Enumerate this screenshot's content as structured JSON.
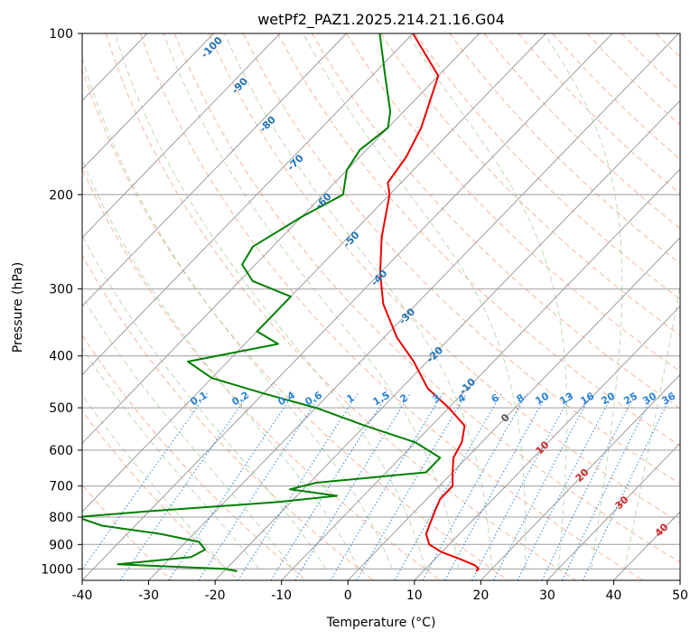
{
  "chart_data": {
    "type": "line",
    "subtype": "skew-t log-p diagram",
    "title": "wetPf2_PAZ1.2025.214.21.16.G04",
    "xlabel": "Temperature (°C)",
    "ylabel": "Pressure (hPa)",
    "xlim": [
      -40,
      50
    ],
    "ylim": [
      1050,
      100
    ],
    "y_scale": "log",
    "grid": true,
    "x_ticks": [
      "-40",
      "-30",
      "-20",
      "-10",
      "0",
      "10",
      "20",
      "30",
      "40",
      "50"
    ],
    "y_ticks": [
      "100",
      "200",
      "300",
      "400",
      "500",
      "600",
      "700",
      "800",
      "900",
      "1000"
    ],
    "series": [
      {
        "name": "",
        "color": "#ee0000",
        "points": [
          [
            -70,
            100
          ],
          [
            -60,
            120
          ],
          [
            -55,
            150
          ],
          [
            -53,
            170
          ],
          [
            -52,
            190
          ],
          [
            -50,
            200
          ],
          [
            -45,
            240
          ],
          [
            -40,
            280
          ],
          [
            -35,
            320
          ],
          [
            -28,
            370
          ],
          [
            -22,
            410
          ],
          [
            -16,
            460
          ],
          [
            -10,
            500
          ],
          [
            -5,
            540
          ],
          [
            -3,
            580
          ],
          [
            -2,
            620
          ],
          [
            0,
            660
          ],
          [
            2,
            700
          ],
          [
            2,
            740
          ],
          [
            3,
            780
          ],
          [
            4,
            820
          ],
          [
            5,
            860
          ],
          [
            7,
            900
          ],
          [
            10,
            930
          ],
          [
            14,
            960
          ],
          [
            17,
            985
          ],
          [
            18,
            1000
          ],
          [
            18,
            1010
          ]
        ]
      },
      {
        "name": "",
        "color": "#008000",
        "points": [
          [
            -75,
            100
          ],
          [
            -68,
            120
          ],
          [
            -62,
            140
          ],
          [
            -60,
            150
          ],
          [
            -61,
            165
          ],
          [
            -60,
            180
          ],
          [
            -57,
            200
          ],
          [
            -60,
            220
          ],
          [
            -63,
            250
          ],
          [
            -62,
            270
          ],
          [
            -58,
            290
          ],
          [
            -50,
            310
          ],
          [
            -50,
            340
          ],
          [
            -50,
            360
          ],
          [
            -45,
            380
          ],
          [
            -56,
            410
          ],
          [
            -50,
            440
          ],
          [
            -40,
            470
          ],
          [
            -30,
            500
          ],
          [
            -20,
            540
          ],
          [
            -10,
            580
          ],
          [
            -4,
            620
          ],
          [
            -4,
            660
          ],
          [
            -19,
            690
          ],
          [
            -22,
            710
          ],
          [
            -14,
            730
          ],
          [
            -22,
            750
          ],
          [
            -40,
            780
          ],
          [
            -50,
            800
          ],
          [
            -45,
            830
          ],
          [
            -35,
            860
          ],
          [
            -28,
            890
          ],
          [
            -26,
            920
          ],
          [
            -27,
            950
          ],
          [
            -37,
            980
          ],
          [
            -20,
            1000
          ],
          [
            -18,
            1010
          ]
        ]
      }
    ],
    "dry_adiabat_labels": [],
    "moist_adiabat_labels": [
      "-100",
      "-90",
      "-80",
      "-70",
      "-60",
      "-50",
      "-40",
      "-30",
      "-20",
      "-10",
      "0",
      "10",
      "20",
      "30",
      "40"
    ],
    "mixing_ratio_labels": [
      "0.1",
      "0.2",
      "0.4",
      "0.6",
      "1",
      "1.5",
      "2",
      "3",
      "4",
      "6",
      "8",
      "10",
      "13",
      "16",
      "20",
      "25",
      "30",
      "36"
    ],
    "colors": {
      "isotherm": "#9e9e9e",
      "isobar": "#9e9e9e",
      "dry_adiabat": "#f4a582",
      "moist_adiabat": "#a6d69e",
      "mixing_ratio": "#2b83d9",
      "label_blue": "#2171b5",
      "label_red": "#d62728",
      "label_gray": "#555555"
    }
  }
}
